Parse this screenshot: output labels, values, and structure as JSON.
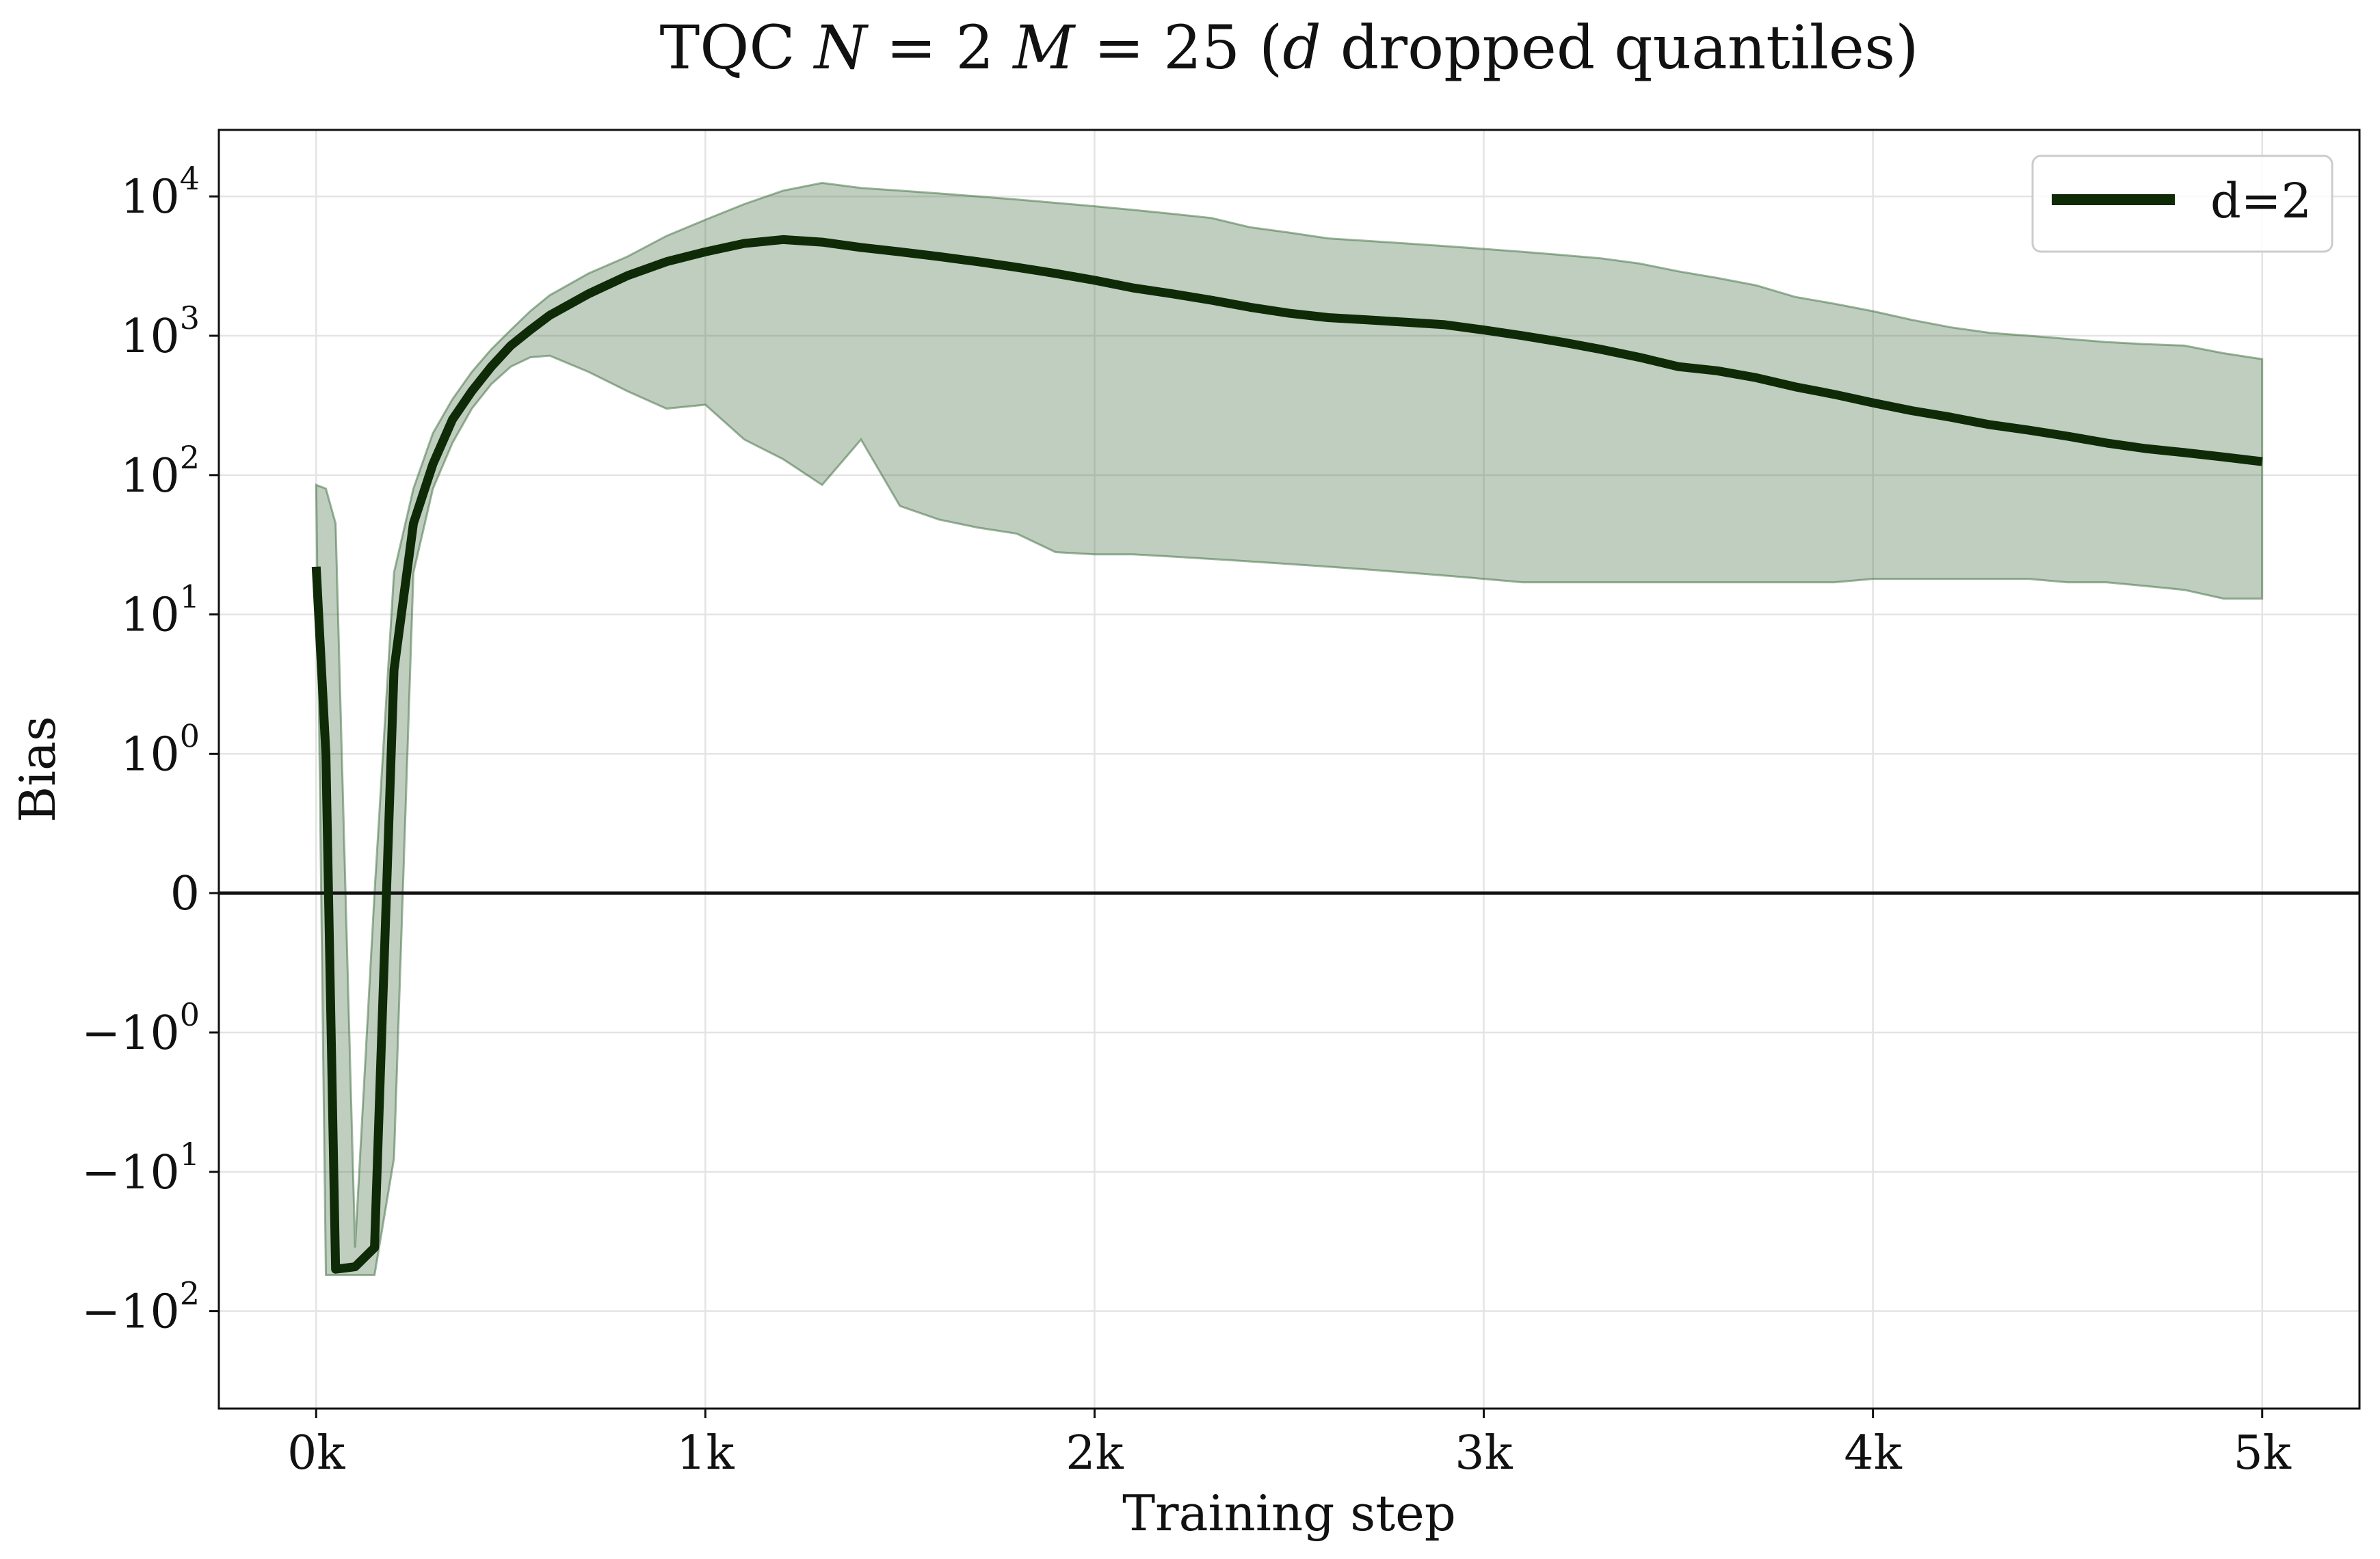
{
  "chart_data": {
    "type": "line",
    "title_parts": [
      "TQC ",
      "N",
      " = 2 ",
      "M",
      " = 25 (",
      "d",
      " dropped quantiles)"
    ],
    "xlabel": "Training step",
    "ylabel": "Bias",
    "xlim": [
      -250,
      5250
    ],
    "ylim": [
      -500,
      30000
    ],
    "y_scale": "symlog",
    "y_linthresh": 1,
    "x_ticks": [
      0,
      1000,
      2000,
      3000,
      4000,
      5000
    ],
    "x_tick_labels": [
      "0k",
      "1k",
      "2k",
      "3k",
      "4k",
      "5k"
    ],
    "y_ticks": [
      {
        "value": 10000,
        "base": "10",
        "sign": "",
        "exp": "4"
      },
      {
        "value": 1000,
        "base": "10",
        "sign": "",
        "exp": "3"
      },
      {
        "value": 100,
        "base": "10",
        "sign": "",
        "exp": "2"
      },
      {
        "value": 10,
        "base": "10",
        "sign": "",
        "exp": "1"
      },
      {
        "value": 1,
        "base": "10",
        "sign": "",
        "exp": "0"
      },
      {
        "value": 0,
        "base": "0",
        "sign": "",
        "exp": ""
      },
      {
        "value": -1,
        "base": "10",
        "sign": "−",
        "exp": "0"
      },
      {
        "value": -10,
        "base": "10",
        "sign": "−",
        "exp": "1"
      },
      {
        "value": -100,
        "base": "10",
        "sign": "−",
        "exp": "2"
      }
    ],
    "grid": true,
    "zero_line": true,
    "legend_position": "top-right",
    "series": [
      {
        "name": "d=2",
        "color": "#0e2a06",
        "band_color": "#3d6b3d",
        "x": [
          0,
          25,
          50,
          100,
          150,
          200,
          250,
          300,
          350,
          400,
          450,
          500,
          550,
          600,
          700,
          800,
          900,
          1000,
          1100,
          1200,
          1300,
          1400,
          1500,
          1600,
          1700,
          1800,
          1900,
          2000,
          2100,
          2200,
          2300,
          2400,
          2500,
          2600,
          2700,
          2800,
          2900,
          3000,
          3100,
          3200,
          3300,
          3400,
          3500,
          3600,
          3700,
          3800,
          3900,
          4000,
          4100,
          4200,
          4300,
          4400,
          4500,
          4600,
          4700,
          4800,
          4900,
          5000
        ],
        "y": [
          22,
          1,
          -50,
          -48,
          -35,
          4,
          45,
          120,
          250,
          400,
          600,
          850,
          1100,
          1400,
          2000,
          2700,
          3400,
          4000,
          4600,
          4900,
          4700,
          4300,
          4000,
          3700,
          3400,
          3100,
          2800,
          2500,
          2200,
          2000,
          1800,
          1600,
          1450,
          1350,
          1300,
          1250,
          1200,
          1100,
          1000,
          900,
          800,
          700,
          600,
          560,
          500,
          430,
          380,
          330,
          290,
          260,
          230,
          210,
          190,
          170,
          155,
          145,
          135,
          125
        ],
        "lower": [
          85,
          -55,
          -55,
          -55,
          -55,
          -8,
          20,
          80,
          170,
          300,
          450,
          600,
          700,
          720,
          550,
          400,
          300,
          320,
          180,
          130,
          85,
          180,
          60,
          48,
          42,
          38,
          28,
          27,
          27,
          26,
          25,
          24,
          23,
          22,
          21,
          20,
          19,
          18,
          17,
          17,
          17,
          17,
          17,
          17,
          17,
          17,
          17,
          18,
          18,
          18,
          18,
          18,
          17,
          17,
          16,
          15,
          13,
          13
        ],
        "upper": [
          85,
          80,
          45,
          -35,
          0,
          20,
          80,
          200,
          350,
          550,
          800,
          1100,
          1500,
          1950,
          2800,
          3700,
          5200,
          6800,
          8800,
          11000,
          12500,
          11500,
          11000,
          10500,
          10000,
          9500,
          9000,
          8500,
          8000,
          7500,
          7000,
          6000,
          5500,
          5000,
          4800,
          4600,
          4400,
          4200,
          4000,
          3800,
          3600,
          3300,
          2900,
          2600,
          2300,
          1900,
          1700,
          1500,
          1300,
          1150,
          1050,
          1000,
          950,
          900,
          870,
          850,
          750,
          680
        ]
      }
    ]
  }
}
